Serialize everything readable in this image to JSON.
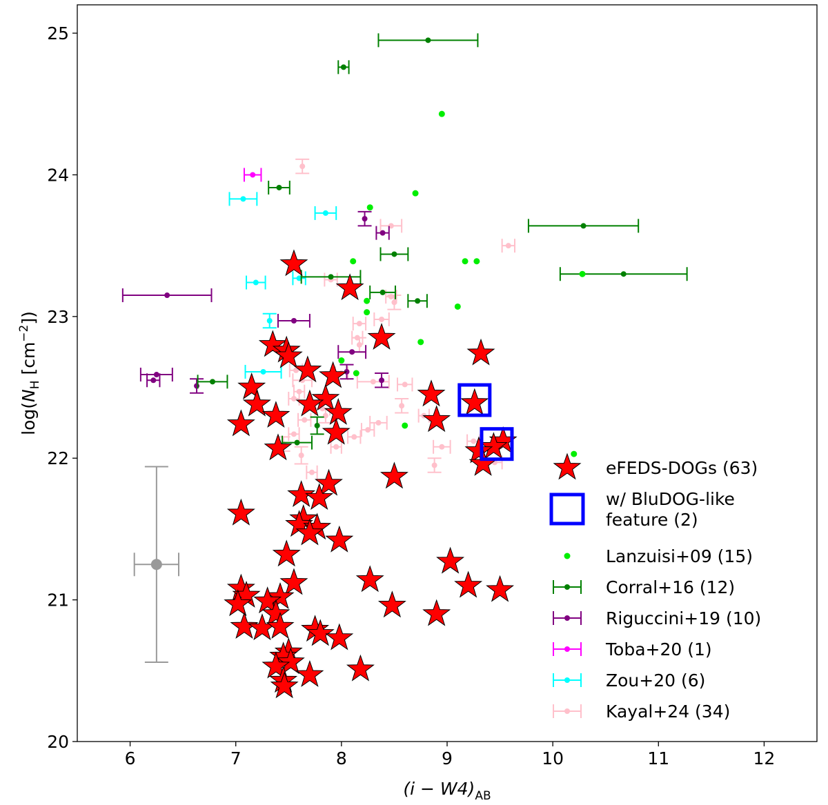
{
  "chart_data": {
    "type": "scatter",
    "title": "",
    "xlabel_main": "(i − W4)",
    "xlabel_sub": "AB",
    "ylabel_pre": "log(",
    "ylabel_sym": "N",
    "ylabel_sub": "H",
    "ylabel_unit": " [cm",
    "ylabel_exp": "−2",
    "ylabel_post": "])",
    "xlim": [
      5.5,
      12.5
    ],
    "ylim": [
      20,
      25.2
    ],
    "xticks": [
      6,
      7,
      8,
      9,
      10,
      11,
      12
    ],
    "yticks": [
      20,
      21,
      22,
      23,
      24,
      25
    ],
    "grid": false,
    "legend_position": "lower-right",
    "series": [
      {
        "name": "Kayal+24 (34)",
        "kind": "errorbar",
        "color": "#ffc0cb",
        "points": [
          {
            "x": 7.63,
            "y": 24.06,
            "xerr": 0,
            "yerr": 0.05
          },
          {
            "x": 8.47,
            "y": 23.64,
            "xerr": 0.1,
            "yerr": 0
          },
          {
            "x": 9.58,
            "y": 23.5,
            "xerr": 0.06,
            "yerr": 0
          },
          {
            "x": 7.9,
            "y": 23.26,
            "xerr": 0.06,
            "yerr": 0
          },
          {
            "x": 8.47,
            "y": 23.14,
            "xerr": 0.05,
            "yerr": 0
          },
          {
            "x": 8.5,
            "y": 23.1,
            "xerr": 0,
            "yerr": 0.05
          },
          {
            "x": 8.17,
            "y": 22.95,
            "xerr": 0.06,
            "yerr": 0
          },
          {
            "x": 8.38,
            "y": 22.98,
            "xerr": 0.07,
            "yerr": 0
          },
          {
            "x": 8.15,
            "y": 22.85,
            "xerr": 0.05,
            "yerr": 0
          },
          {
            "x": 8.17,
            "y": 22.8,
            "xerr": 0,
            "yerr": 0.05
          },
          {
            "x": 7.57,
            "y": 22.62,
            "xerr": 0.06,
            "yerr": 0
          },
          {
            "x": 7.63,
            "y": 22.55,
            "xerr": 0.09,
            "yerr": 0
          },
          {
            "x": 8.3,
            "y": 22.54,
            "xerr": 0.15,
            "yerr": 0
          },
          {
            "x": 8.6,
            "y": 22.52,
            "xerr": 0.07,
            "yerr": 0
          },
          {
            "x": 7.6,
            "y": 22.47,
            "xerr": 0.05,
            "yerr": 0
          },
          {
            "x": 8.57,
            "y": 22.37,
            "xerr": 0,
            "yerr": 0.05
          },
          {
            "x": 7.82,
            "y": 22.35,
            "xerr": 0.07,
            "yerr": 0
          },
          {
            "x": 8.78,
            "y": 22.3,
            "xerr": 0.05,
            "yerr": 0
          },
          {
            "x": 7.65,
            "y": 22.27,
            "xerr": 0.06,
            "yerr": 0
          },
          {
            "x": 8.35,
            "y": 22.25,
            "xerr": 0.08,
            "yerr": 0
          },
          {
            "x": 8.25,
            "y": 22.2,
            "xerr": 0.06,
            "yerr": 0
          },
          {
            "x": 7.55,
            "y": 22.17,
            "xerr": 0.05,
            "yerr": 0
          },
          {
            "x": 8.12,
            "y": 22.15,
            "xerr": 0.06,
            "yerr": 0
          },
          {
            "x": 9.25,
            "y": 22.12,
            "xerr": 0.06,
            "yerr": 0
          },
          {
            "x": 7.45,
            "y": 22.1,
            "xerr": 0,
            "yerr": 0.05
          },
          {
            "x": 7.95,
            "y": 22.08,
            "xerr": 0.05,
            "yerr": 0
          },
          {
            "x": 8.95,
            "y": 22.08,
            "xerr": 0.08,
            "yerr": 0
          },
          {
            "x": 7.62,
            "y": 22.02,
            "xerr": 0,
            "yerr": 0.06
          },
          {
            "x": 9.45,
            "y": 21.97,
            "xerr": 0.07,
            "yerr": 0
          },
          {
            "x": 8.88,
            "y": 21.95,
            "xerr": 0,
            "yerr": 0.05
          },
          {
            "x": 7.72,
            "y": 21.9,
            "xerr": 0.05,
            "yerr": 0
          },
          {
            "x": 7.55,
            "y": 22.42,
            "xerr": 0.05,
            "yerr": 0
          },
          {
            "x": 8.0,
            "y": 22.6,
            "xerr": 0.06,
            "yerr": 0
          },
          {
            "x": 7.85,
            "y": 22.3,
            "xerr": 0,
            "yerr": 0.05
          }
        ]
      },
      {
        "name": "Zou+20 (6)",
        "kind": "errorbar",
        "color": "#00ffff",
        "points": [
          {
            "x": 7.07,
            "y": 23.83,
            "xerr": 0.13,
            "yerr": 0
          },
          {
            "x": 7.85,
            "y": 23.73,
            "xerr": 0.1,
            "yerr": 0
          },
          {
            "x": 7.19,
            "y": 23.24,
            "xerr": 0.09,
            "yerr": 0
          },
          {
            "x": 7.6,
            "y": 23.27,
            "xerr": 0.06,
            "yerr": 0
          },
          {
            "x": 7.32,
            "y": 22.97,
            "xerr": 0,
            "yerr": 0.05
          },
          {
            "x": 7.26,
            "y": 22.61,
            "xerr": 0.17,
            "yerr": 0
          }
        ]
      },
      {
        "name": "Toba+20 (1)",
        "kind": "errorbar",
        "color": "#ff00ff",
        "points": [
          {
            "x": 7.16,
            "y": 24.0,
            "xerr": 0.08,
            "yerr": 0
          }
        ]
      },
      {
        "name": "Riguccini+19 (10)",
        "kind": "errorbar",
        "color": "#800080",
        "points": [
          {
            "x": 6.35,
            "y": 23.15,
            "xerr": 0.42,
            "yerr": 0
          },
          {
            "x": 6.22,
            "y": 22.55,
            "xerr": 0.06,
            "yerr": 0
          },
          {
            "x": 6.25,
            "y": 22.59,
            "xerr": 0.15,
            "yerr": 0
          },
          {
            "x": 6.63,
            "y": 22.51,
            "xerr": 0,
            "yerr": 0.05
          },
          {
            "x": 7.55,
            "y": 22.97,
            "xerr": 0.15,
            "yerr": 0
          },
          {
            "x": 8.22,
            "y": 23.69,
            "xerr": 0,
            "yerr": 0.05
          },
          {
            "x": 8.39,
            "y": 23.59,
            "xerr": 0.06,
            "yerr": 0
          },
          {
            "x": 8.1,
            "y": 22.75,
            "xerr": 0.13,
            "yerr": 0
          },
          {
            "x": 8.38,
            "y": 22.55,
            "xerr": 0,
            "yerr": 0.05
          },
          {
            "x": 8.05,
            "y": 22.61,
            "xerr": 0,
            "yerr": 0.05
          }
        ]
      },
      {
        "name": "Corral+16 (12)",
        "kind": "errorbar",
        "color": "#008000",
        "points": [
          {
            "x": 8.82,
            "y": 24.95,
            "xerr": 0.47,
            "yerr": 0
          },
          {
            "x": 8.02,
            "y": 24.76,
            "xerr": 0.05,
            "yerr": 0
          },
          {
            "x": 7.41,
            "y": 23.91,
            "xerr": 0.1,
            "yerr": 0
          },
          {
            "x": 10.29,
            "y": 23.64,
            "xerr": 0.52,
            "yerr": 0
          },
          {
            "x": 8.5,
            "y": 23.44,
            "xerr": 0.13,
            "yerr": 0
          },
          {
            "x": 10.67,
            "y": 23.3,
            "xerr": 0.6,
            "yerr": 0
          },
          {
            "x": 7.9,
            "y": 23.28,
            "xerr": 0.28,
            "yerr": 0
          },
          {
            "x": 8.39,
            "y": 23.17,
            "xerr": 0.12,
            "yerr": 0
          },
          {
            "x": 8.72,
            "y": 23.11,
            "xerr": 0.09,
            "yerr": 0
          },
          {
            "x": 6.78,
            "y": 22.54,
            "xerr": 0.14,
            "yerr": 0
          },
          {
            "x": 7.77,
            "y": 22.23,
            "xerr": 0,
            "yerr": 0.06
          },
          {
            "x": 7.58,
            "y": 22.11,
            "xerr": 0.14,
            "yerr": 0
          }
        ]
      },
      {
        "name": "Lanzuisi+09 (15)",
        "kind": "dot",
        "color": "#00ee00",
        "points": [
          {
            "x": 8.95,
            "y": 24.43
          },
          {
            "x": 8.7,
            "y": 23.87
          },
          {
            "x": 8.27,
            "y": 23.77
          },
          {
            "x": 9.17,
            "y": 23.39
          },
          {
            "x": 9.28,
            "y": 23.39
          },
          {
            "x": 8.11,
            "y": 23.39
          },
          {
            "x": 10.28,
            "y": 23.3
          },
          {
            "x": 8.24,
            "y": 23.11
          },
          {
            "x": 9.1,
            "y": 23.07
          },
          {
            "x": 8.24,
            "y": 23.03
          },
          {
            "x": 8.75,
            "y": 22.82
          },
          {
            "x": 8.0,
            "y": 22.69
          },
          {
            "x": 8.14,
            "y": 22.6
          },
          {
            "x": 8.6,
            "y": 22.23
          },
          {
            "x": 10.2,
            "y": 22.03
          }
        ]
      },
      {
        "name": "eFEDS-DOGs (63)",
        "kind": "star",
        "color": "#ff0000",
        "points": [
          {
            "x": 7.55,
            "y": 23.37
          },
          {
            "x": 8.08,
            "y": 23.2
          },
          {
            "x": 8.38,
            "y": 22.85
          },
          {
            "x": 9.32,
            "y": 22.74
          },
          {
            "x": 7.35,
            "y": 22.8
          },
          {
            "x": 7.48,
            "y": 22.76
          },
          {
            "x": 7.5,
            "y": 22.72
          },
          {
            "x": 7.68,
            "y": 22.62
          },
          {
            "x": 7.92,
            "y": 22.58
          },
          {
            "x": 7.15,
            "y": 22.5
          },
          {
            "x": 7.85,
            "y": 22.42
          },
          {
            "x": 7.7,
            "y": 22.38
          },
          {
            "x": 8.85,
            "y": 22.45
          },
          {
            "x": 9.26,
            "y": 22.39
          },
          {
            "x": 7.2,
            "y": 22.38
          },
          {
            "x": 7.97,
            "y": 22.32
          },
          {
            "x": 7.38,
            "y": 22.3
          },
          {
            "x": 8.9,
            "y": 22.27
          },
          {
            "x": 7.05,
            "y": 22.24
          },
          {
            "x": 7.95,
            "y": 22.18
          },
          {
            "x": 9.53,
            "y": 22.12
          },
          {
            "x": 9.44,
            "y": 22.08
          },
          {
            "x": 9.3,
            "y": 22.05
          },
          {
            "x": 7.4,
            "y": 22.07
          },
          {
            "x": 9.34,
            "y": 21.96
          },
          {
            "x": 8.5,
            "y": 21.87
          },
          {
            "x": 7.88,
            "y": 21.82
          },
          {
            "x": 7.62,
            "y": 21.74
          },
          {
            "x": 7.79,
            "y": 21.72
          },
          {
            "x": 7.05,
            "y": 21.61
          },
          {
            "x": 7.64,
            "y": 21.57
          },
          {
            "x": 7.6,
            "y": 21.53
          },
          {
            "x": 7.77,
            "y": 21.51
          },
          {
            "x": 7.7,
            "y": 21.47
          },
          {
            "x": 7.98,
            "y": 21.42
          },
          {
            "x": 7.48,
            "y": 21.32
          },
          {
            "x": 9.03,
            "y": 21.27
          },
          {
            "x": 7.55,
            "y": 21.12
          },
          {
            "x": 8.27,
            "y": 21.14
          },
          {
            "x": 9.2,
            "y": 21.1
          },
          {
            "x": 9.5,
            "y": 21.07
          },
          {
            "x": 7.05,
            "y": 21.08
          },
          {
            "x": 7.1,
            "y": 21.03
          },
          {
            "x": 7.42,
            "y": 21.02
          },
          {
            "x": 7.3,
            "y": 20.99
          },
          {
            "x": 7.02,
            "y": 20.97
          },
          {
            "x": 8.48,
            "y": 20.96
          },
          {
            "x": 7.38,
            "y": 20.9
          },
          {
            "x": 8.9,
            "y": 20.9
          },
          {
            "x": 7.08,
            "y": 20.81
          },
          {
            "x": 7.25,
            "y": 20.8
          },
          {
            "x": 7.42,
            "y": 20.81
          },
          {
            "x": 7.75,
            "y": 20.79
          },
          {
            "x": 7.8,
            "y": 20.76
          },
          {
            "x": 7.98,
            "y": 20.73
          },
          {
            "x": 7.5,
            "y": 20.63
          },
          {
            "x": 7.45,
            "y": 20.6
          },
          {
            "x": 7.52,
            "y": 20.56
          },
          {
            "x": 7.38,
            "y": 20.53
          },
          {
            "x": 8.18,
            "y": 20.51
          },
          {
            "x": 7.7,
            "y": 20.47
          },
          {
            "x": 7.45,
            "y": 20.43
          },
          {
            "x": 7.46,
            "y": 20.39
          }
        ]
      },
      {
        "name": "w/ BluDOG-like\n feature (2)",
        "kind": "square",
        "color": "#0000ff",
        "points": [
          {
            "x": 9.26,
            "y": 22.41
          },
          {
            "x": 9.47,
            "y": 22.1
          }
        ]
      }
    ],
    "typical_error": {
      "x": 6.25,
      "y": 21.25,
      "xerr": 0.21,
      "yerr": 0.69,
      "color": "#999999"
    },
    "legend": [
      {
        "label": "eFEDS-DOGs (63)",
        "marker": "star",
        "color": "#ff0000"
      },
      {
        "label": "w/ BluDOG-like",
        "label2": " feature (2)",
        "marker": "square",
        "color": "#0000ff"
      },
      {
        "label": "Lanzuisi+09 (15)",
        "marker": "dot",
        "color": "#00ee00"
      },
      {
        "label": "Corral+16 (12)",
        "marker": "errorbar",
        "color": "#008000"
      },
      {
        "label": "Riguccini+19 (10)",
        "marker": "errorbar",
        "color": "#800080"
      },
      {
        "label": "Toba+20 (1)",
        "marker": "errorbar",
        "color": "#ff00ff"
      },
      {
        "label": "Zou+20 (6)",
        "marker": "errorbar",
        "color": "#00ffff"
      },
      {
        "label": "Kayal+24 (34)",
        "marker": "errorbar",
        "color": "#ffc0cb"
      }
    ]
  }
}
